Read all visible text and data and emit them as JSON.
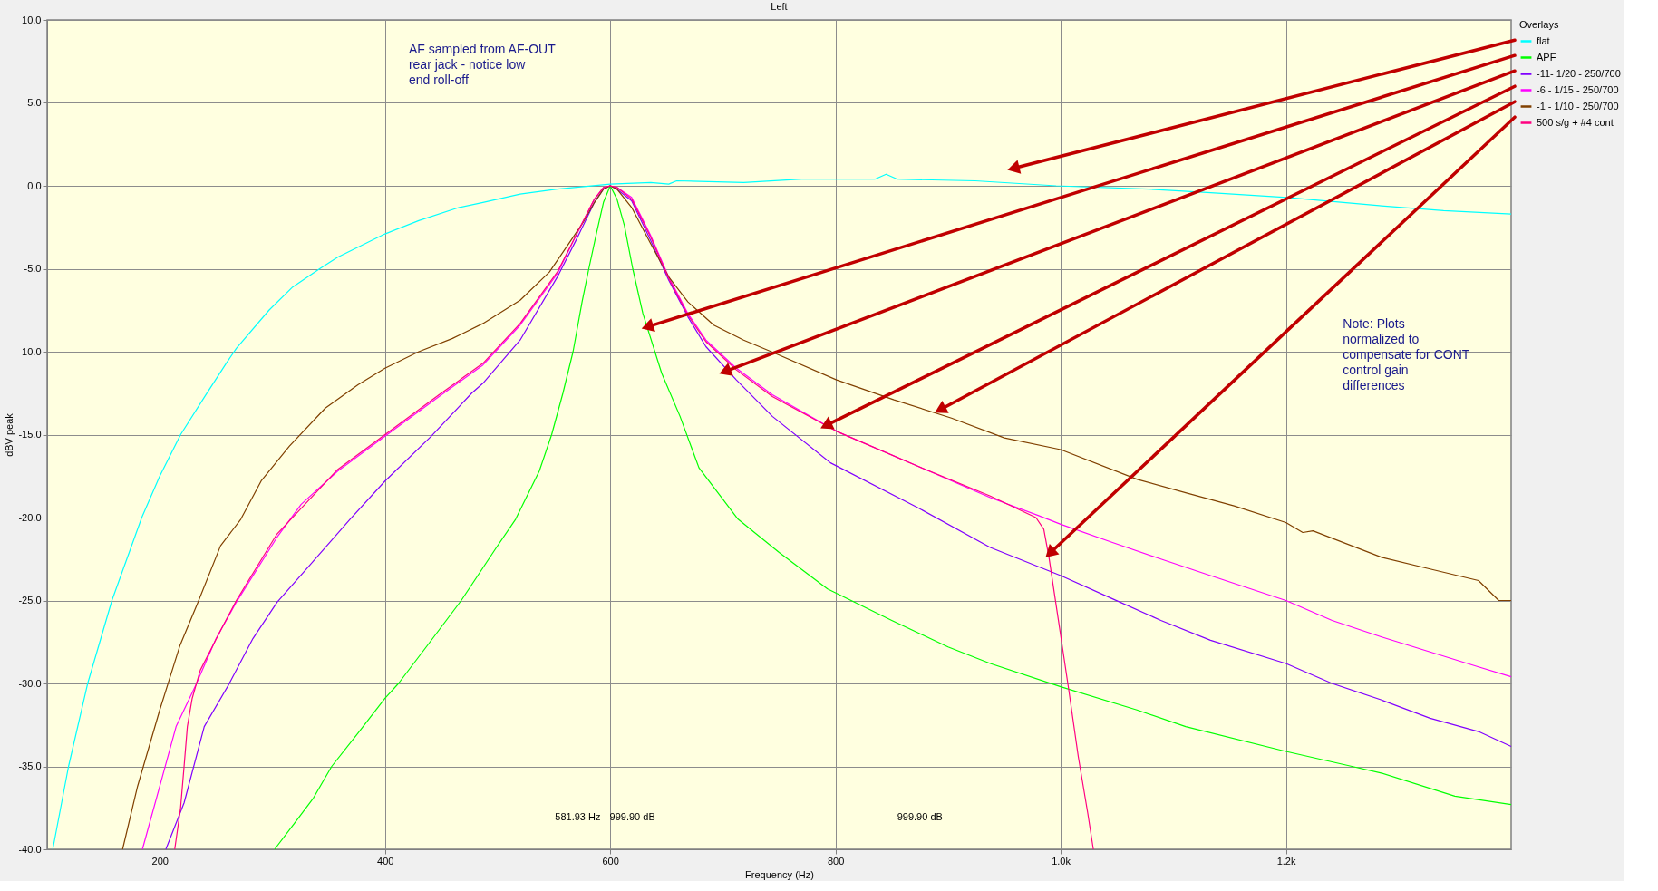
{
  "chart_data": {
    "type": "line",
    "title": "Left",
    "xlabel": "Frequency (Hz)",
    "ylabel": "dBV peak",
    "legend_title": "Overlays",
    "xlim": [
      100,
      1400
    ],
    "xticks": [
      200,
      400,
      600,
      800,
      {
        "value": 1000,
        "label": "1.0k"
      },
      {
        "value": 1200,
        "label": "1.2k"
      }
    ],
    "ylim": [
      -40,
      10
    ],
    "yticks": [
      {
        "value": 10,
        "label": "10.0"
      },
      {
        "value": 5,
        "label": "5.0"
      },
      {
        "value": 0,
        "label": "0.0"
      },
      {
        "value": -5,
        "label": "-5.0"
      },
      {
        "value": -10,
        "label": "-10.0"
      },
      {
        "value": -15,
        "label": "-15.0"
      },
      {
        "value": -20,
        "label": "-20.0"
      },
      {
        "value": -25,
        "label": "-25.0"
      },
      {
        "value": -30,
        "label": "-30.0"
      },
      {
        "value": -35,
        "label": "-35.0"
      },
      {
        "value": -40,
        "label": "-40.0"
      }
    ],
    "grid": true,
    "legend": "top right",
    "series": [
      {
        "name": "flat",
        "color": "#00ffff",
        "x": [
          105,
          119,
          136,
          157.5,
          184,
          200,
          218.5,
          240,
          259,
          268,
          297,
          318,
          342,
          358,
          400,
          430,
          466,
          487,
          520,
          553,
          600,
          636,
          652,
          659,
          718.5,
          770,
          835,
          845,
          855,
          924,
          996,
          1078,
          1130,
          1201,
          1283,
          1340,
          1400
        ],
        "values": [
          -40,
          -35,
          -30,
          -25,
          -20,
          -17.5,
          -15,
          -12.7,
          -10.7,
          -9.8,
          -7.5,
          -6.1,
          -5.0,
          -4.3,
          -2.9,
          -2.1,
          -1.3,
          -1.0,
          -0.5,
          -0.2,
          0.1,
          0.2,
          0.1,
          0.3,
          0.2,
          0.4,
          0.4,
          0.7,
          0.4,
          0.3,
          0,
          -0.2,
          -0.4,
          -0.7,
          -1.2,
          -1.5,
          -1.7
        ]
      },
      {
        "name": "APF",
        "color": "#00ff00",
        "x": [
          302,
          320,
          336.5,
          352.7,
          376,
          400,
          412,
          440,
          467.7,
          498,
          516,
          537,
          548,
          558,
          567,
          575,
          581,
          588,
          594,
          600,
          606,
          612.6,
          620,
          629,
          645.7,
          662,
          678.8,
          713.5,
          750,
          793,
          850,
          900,
          937.5,
          1000,
          1067.7,
          1111,
          1200,
          1258.6,
          1284.6,
          1350,
          1400
        ],
        "values": [
          -40,
          -38.4,
          -36.9,
          -35.0,
          -33.0,
          -30.9,
          -30.0,
          -27.5,
          -25.0,
          -21.9,
          -20.1,
          -17.2,
          -15.0,
          -12.5,
          -10.0,
          -7.0,
          -5.0,
          -2.8,
          -1.0,
          0,
          -0.8,
          -2.4,
          -5.0,
          -7.7,
          -11.3,
          -13.9,
          -17.0,
          -20.1,
          -22.1,
          -24.3,
          -26.2,
          -27.8,
          -28.8,
          -30.2,
          -31.6,
          -32.6,
          -34.1,
          -35.0,
          -35.4,
          -36.8,
          -37.3
        ]
      },
      {
        "name": "-11- 1/20 - 250/700",
        "color": "#8000ff",
        "x": [
          205.4,
          221.6,
          239.5,
          261,
          282.7,
          304.2,
          332.8,
          369,
          400,
          441,
          477,
          487,
          520,
          553,
          569.5,
          586,
          594,
          600,
          606,
          619,
          636,
          652,
          669,
          685,
          712,
          744,
          795.6,
          873,
          937.5,
          1000,
          1046,
          1089,
          1133,
          1200,
          1241,
          1285,
          1328,
          1371,
          1400
        ],
        "values": [
          -40,
          -37.2,
          -32.6,
          -30.1,
          -27.3,
          -25.1,
          -22.9,
          -20.1,
          -17.8,
          -15.1,
          -12.5,
          -11.9,
          -9.3,
          -5.5,
          -3.3,
          -1.0,
          -0.2,
          0,
          -0.2,
          -0.9,
          -3.3,
          -5.7,
          -7.9,
          -9.7,
          -11.7,
          -13.9,
          -16.7,
          -19.4,
          -21.8,
          -23.5,
          -24.9,
          -26.2,
          -27.4,
          -28.8,
          -30.0,
          -31.0,
          -32.1,
          -32.9,
          -33.8
        ]
      },
      {
        "name": "-6 - 1/15 - 250/700",
        "color": "#ff00ff",
        "x": [
          184.6,
          200,
          214.5,
          232,
          250,
          268,
          304,
          325.6,
          358,
          400,
          448,
          487,
          520,
          536,
          553,
          569.5,
          586,
          594,
          600,
          606,
          619,
          636,
          652,
          669,
          685,
          712,
          744,
          801,
          873,
          937.5,
          981,
          1000,
          1046,
          1089,
          1133,
          1200,
          1241,
          1285,
          1328,
          1371,
          1400
        ],
        "values": [
          -40,
          -36.2,
          -32.6,
          -30.1,
          -27.3,
          -25.1,
          -21.2,
          -19.2,
          -17.2,
          -15.1,
          -12.7,
          -10.8,
          -8.4,
          -6.9,
          -5.3,
          -3.0,
          -0.8,
          -0.1,
          0,
          -0.1,
          -0.7,
          -3.0,
          -5.5,
          -7.7,
          -9.3,
          -11.0,
          -12.6,
          -14.8,
          -16.9,
          -18.8,
          -19.9,
          -20.4,
          -21.5,
          -22.5,
          -23.5,
          -25.0,
          -26.2,
          -27.2,
          -28.1,
          -29.0,
          -29.6
        ]
      },
      {
        "name": "-1 - 1/10 - 250/700",
        "color": "#804000",
        "x": [
          167,
          180.3,
          200,
          218,
          234,
          254,
          272,
          290,
          315,
          347,
          376,
          400,
          430,
          460,
          487,
          520,
          546,
          563,
          576,
          586,
          594,
          600,
          606,
          619,
          636,
          652,
          669,
          692,
          718.5,
          743,
          801,
          852,
          903,
          950,
          1000,
          1068,
          1111,
          1154,
          1200,
          1215,
          1224,
          1285,
          1328,
          1371,
          1389,
          1400
        ],
        "values": [
          -40,
          -36.2,
          -31.6,
          -27.7,
          -25.1,
          -21.7,
          -20.1,
          -17.8,
          -15.7,
          -13.4,
          -12.0,
          -11.0,
          -10.0,
          -9.2,
          -8.3,
          -6.9,
          -5.2,
          -3.5,
          -2.2,
          -1.0,
          -0.2,
          0,
          -0.2,
          -1.3,
          -3.5,
          -5.5,
          -7.0,
          -8.4,
          -9.3,
          -10.0,
          -11.7,
          -12.9,
          -14.0,
          -15.2,
          -15.9,
          -17.7,
          -18.5,
          -19.3,
          -20.3,
          -20.9,
          -20.8,
          -22.4,
          -23.1,
          -23.8,
          -25.0,
          -25.0
        ]
      },
      {
        "name": "500 s/g + #4 cont",
        "color": "#ff0080",
        "x": [
          213.3,
          218.5,
          221.6,
          224.5,
          228.8,
          236,
          254,
          268,
          304,
          358,
          400,
          448,
          487,
          520,
          536,
          553,
          569.5,
          586,
          594,
          600,
          606,
          619,
          636,
          652,
          669,
          685,
          712,
          744,
          801,
          873,
          937.5,
          978,
          985,
          989.6,
          998,
          1007,
          1015.6,
          1024,
          1029
        ],
        "values": [
          -40,
          -37.5,
          -35.0,
          -32.6,
          -30.9,
          -29.2,
          -26.8,
          -25.0,
          -21.0,
          -17.1,
          -15.0,
          -12.6,
          -10.7,
          -8.3,
          -6.8,
          -5.2,
          -3.0,
          -0.8,
          -0.1,
          0,
          -0.1,
          -0.8,
          -3.1,
          -5.6,
          -7.8,
          -9.4,
          -11.1,
          -12.7,
          -14.8,
          -16.9,
          -18.7,
          -20.0,
          -20.7,
          -22.4,
          -26.2,
          -30.3,
          -34.4,
          -37.8,
          -40
        ]
      }
    ],
    "annotations": [
      "AF sampled from AF-OUT rear jack - notice low end roll-off",
      "Note:  Plots normalized to compensate for CONT control gain differences",
      "581.93 Hz",
      "-999.90 dB",
      "-999.90 dB"
    ]
  }
}
